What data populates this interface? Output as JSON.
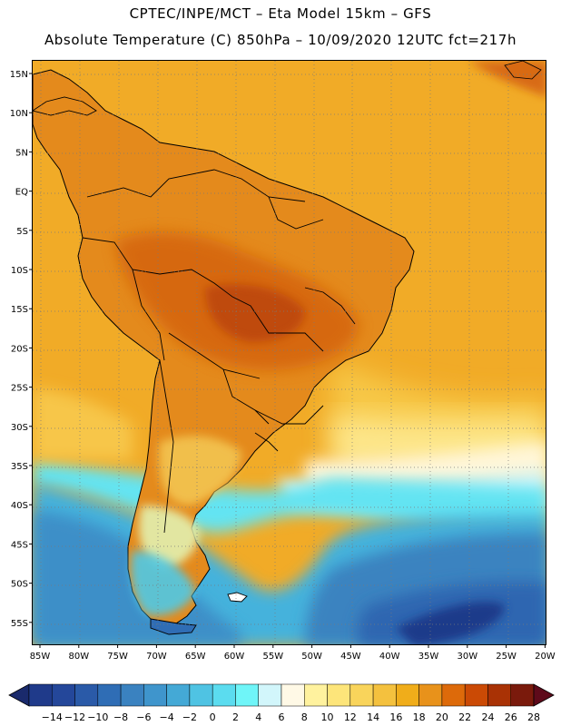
{
  "header": {
    "line1": "CPTEC/INPE/MCT –  Eta Model 15km – GFS",
    "line2": "Absolute Temperature (C) 850hPa – 10/09/2020 12UTC fct=217h"
  },
  "axes": {
    "lat_labels": [
      "15N",
      "10N",
      "5N",
      "EQ",
      "5S",
      "10S",
      "15S",
      "20S",
      "25S",
      "30S",
      "35S",
      "40S",
      "45S",
      "50S",
      "55S"
    ],
    "lon_labels": [
      "85W",
      "80W",
      "75W",
      "70W",
      "65W",
      "60W",
      "55W",
      "50W",
      "45W",
      "40W",
      "35W",
      "30W",
      "25W",
      "20W"
    ]
  },
  "legend": {
    "labels": [
      "-14",
      "-12",
      "-10",
      "-8",
      "-6",
      "-4",
      "-2",
      "0",
      "2",
      "4",
      "6",
      "8",
      "10",
      "12",
      "14",
      "16",
      "18",
      "20",
      "22",
      "24",
      "26",
      "28"
    ],
    "colors": [
      "#1f3a8a",
      "#24479a",
      "#2a5aa8",
      "#2f6db5",
      "#3a82c0",
      "#3f95cc",
      "#44a9d6",
      "#4fc3e3",
      "#5bdcef",
      "#6ff5f8",
      "#d2f6fb",
      "#fff9e6",
      "#fff29e",
      "#fde57a",
      "#f9d45b",
      "#f4c13e",
      "#f0ad1a",
      "#e8921b",
      "#dd6a0a",
      "#cb4a05",
      "#a93205",
      "#7a1a0c"
    ],
    "low_arrow_color": "#1a2a6c",
    "high_arrow_color": "#5e0a1a"
  },
  "map": {
    "ocean_fill": "#f3ae2a",
    "land_fill": "#e7891b"
  }
}
